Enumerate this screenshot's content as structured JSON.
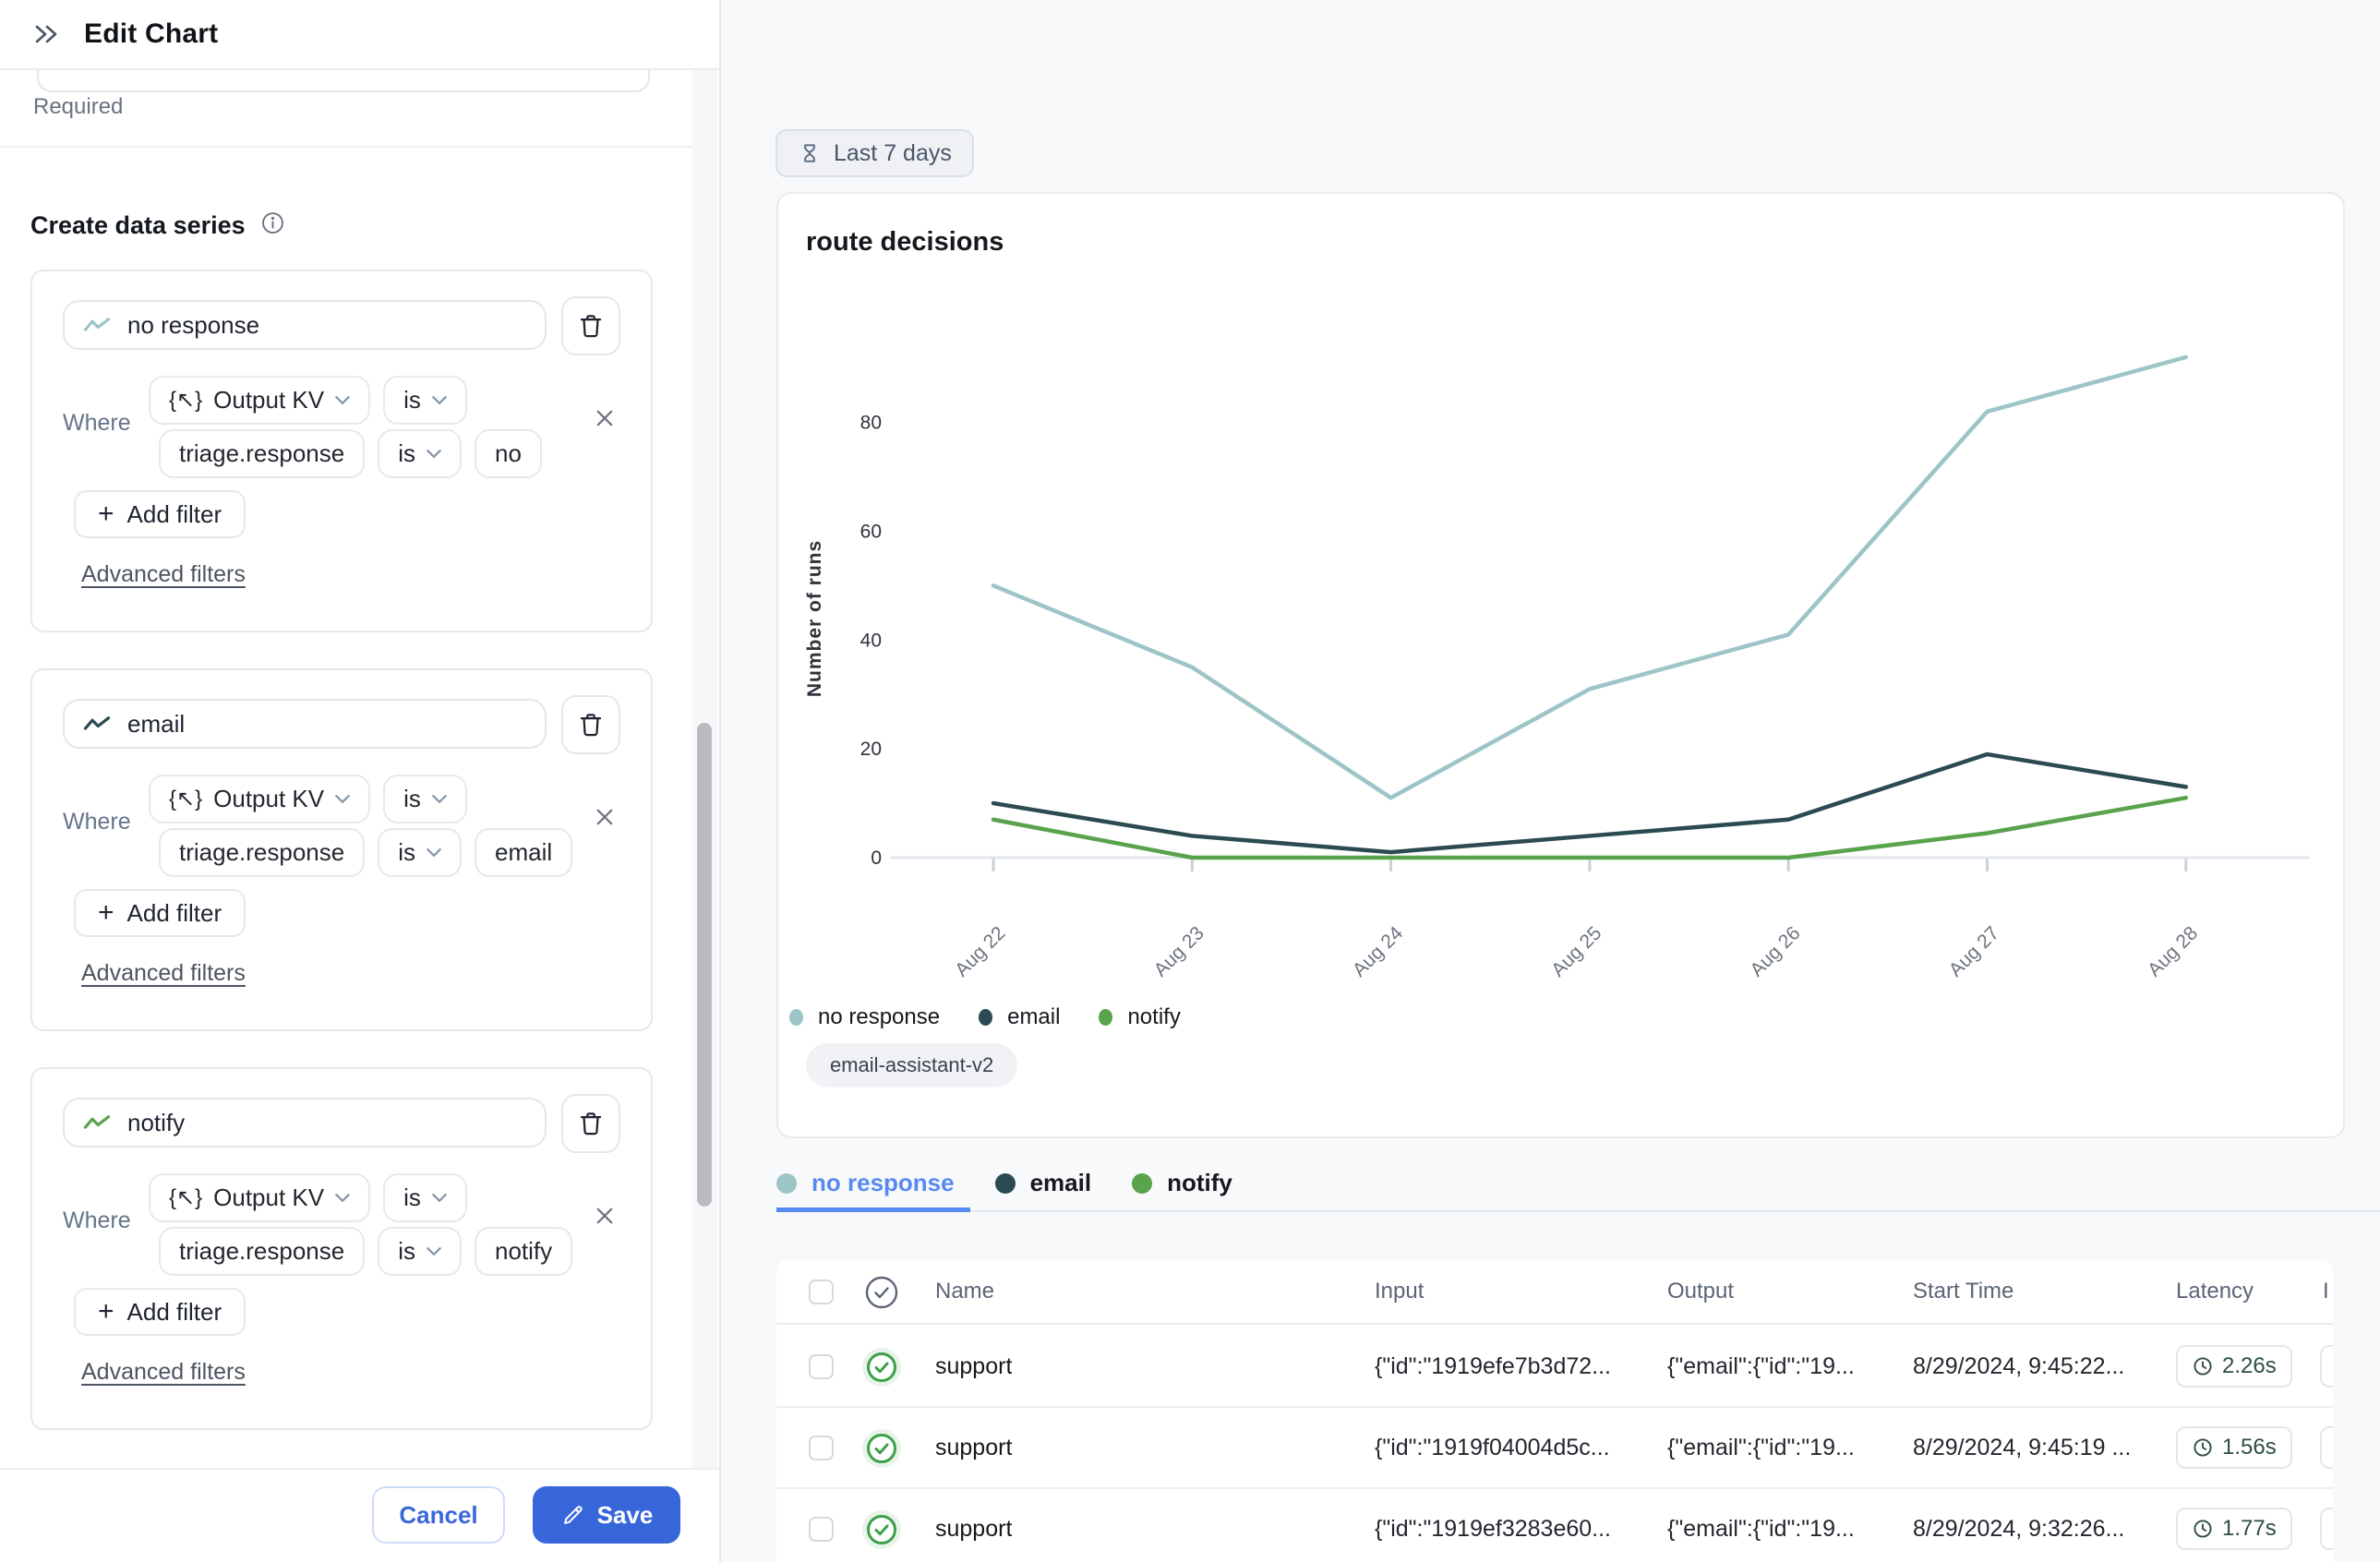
{
  "header": {
    "title": "Edit Chart"
  },
  "icons": {
    "kv_glyph": "{↖}"
  },
  "sidebar": {
    "required_label": "Required",
    "section_title": "Create data series",
    "series_cards": [
      {
        "name": "no response",
        "color": "#9dc4c7",
        "where_label": "Where",
        "filter": {
          "field": "Output KV",
          "field_op": "is",
          "key": "triage.response",
          "key_op": "is",
          "value": "no"
        },
        "add_filter_label": "Add filter",
        "advanced_filters_label": "Advanced filters"
      },
      {
        "name": "email",
        "color": "#2b4a52",
        "where_label": "Where",
        "filter": {
          "field": "Output KV",
          "field_op": "is",
          "key": "triage.response",
          "key_op": "is",
          "value": "email"
        },
        "add_filter_label": "Add filter",
        "advanced_filters_label": "Advanced filters"
      },
      {
        "name": "notify",
        "color": "#58a34c",
        "where_label": "Where",
        "filter": {
          "field": "Output KV",
          "field_op": "is",
          "key": "triage.response",
          "key_op": "is",
          "value": "notify"
        },
        "add_filter_label": "Add filter",
        "advanced_filters_label": "Advanced filters"
      }
    ],
    "cancel_label": "Cancel",
    "save_label": "Save"
  },
  "main": {
    "time_range_label": "Last 7 days",
    "chart_title": "route decisions",
    "tag_label": "email-assistant-v2",
    "tabs": [
      {
        "label": "no response",
        "color": "#9dc4c7",
        "active": true
      },
      {
        "label": "email",
        "color": "#2b4a52",
        "active": false
      },
      {
        "label": "notify",
        "color": "#58a34c",
        "active": false
      }
    ],
    "table": {
      "columns": [
        "Name",
        "Input",
        "Output",
        "Start Time",
        "Latency"
      ],
      "partial_column_label": "I",
      "rows": [
        {
          "name": "support",
          "input": "{\"id\":\"1919efe7b3d72...",
          "output": "{\"email\":{\"id\":\"19...",
          "start_time": "8/29/2024, 9:45:22...",
          "latency": "2.26s"
        },
        {
          "name": "support",
          "input": "{\"id\":\"1919f04004d5c...",
          "output": "{\"email\":{\"id\":\"19...",
          "start_time": "8/29/2024, 9:45:19 ...",
          "latency": "1.56s"
        },
        {
          "name": "support",
          "input": "{\"id\":\"1919ef3283e60...",
          "output": "{\"email\":{\"id\":\"19...",
          "start_time": "8/29/2024, 9:32:26...",
          "latency": "1.77s"
        }
      ]
    }
  },
  "chart_data": {
    "type": "line",
    "title": "route decisions",
    "x": [
      "Aug 22",
      "Aug 23",
      "Aug 24",
      "Aug 25",
      "Aug 26",
      "Aug 27",
      "Aug 28"
    ],
    "series": [
      {
        "name": "no response",
        "color": "#9dc4c7",
        "values": [
          50,
          35,
          11,
          31,
          41,
          82,
          92
        ]
      },
      {
        "name": "email",
        "color": "#2b4a52",
        "values": [
          10,
          4,
          1,
          4,
          7,
          19,
          13
        ]
      },
      {
        "name": "notify",
        "color": "#58a34c",
        "values": [
          7,
          0,
          0,
          0,
          0,
          4.5,
          11
        ]
      }
    ],
    "xlabel": "",
    "ylabel": "Number of runs",
    "y_ticks": [
      0,
      20,
      40,
      60,
      80
    ],
    "ylim": [
      0,
      97
    ],
    "grid": false,
    "legend_position": "bottom"
  }
}
